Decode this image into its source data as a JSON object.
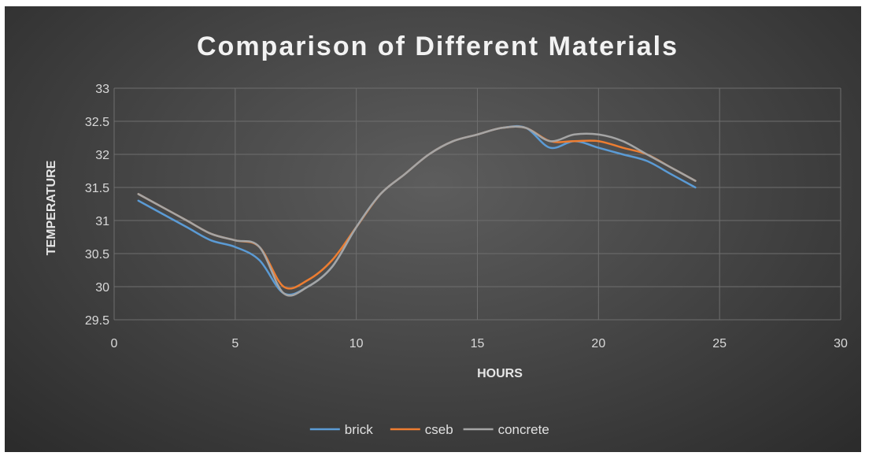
{
  "chart_data": {
    "type": "line",
    "title": "Comparison of Different Materials",
    "xlabel": "HOURS",
    "ylabel": "TEMPERATURE",
    "xlim": [
      0,
      30
    ],
    "ylim": [
      29.5,
      33
    ],
    "x_ticks": [
      0,
      5,
      10,
      15,
      20,
      25,
      30
    ],
    "y_ticks": [
      29.5,
      30,
      30.5,
      31,
      31.5,
      32,
      32.5,
      33
    ],
    "x_tick_labels": [
      "0",
      "5",
      "10",
      "15",
      "20",
      "25",
      "30"
    ],
    "y_tick_labels": [
      "29.5",
      "30",
      "30.5",
      "31",
      "31.5",
      "32",
      "32.5",
      "33"
    ],
    "grid": true,
    "legend_position": "bottom",
    "x": [
      1,
      2,
      3,
      4,
      5,
      6,
      7,
      8,
      9,
      10,
      11,
      12,
      13,
      14,
      15,
      16,
      17,
      18,
      19,
      20,
      21,
      22,
      23,
      24
    ],
    "series": [
      {
        "name": "brick",
        "color": "#5b9bd5",
        "values": [
          31.3,
          31.1,
          30.9,
          30.7,
          30.6,
          30.4,
          29.9,
          30.0,
          30.3,
          30.9,
          31.4,
          31.7,
          32.0,
          32.2,
          32.3,
          32.4,
          32.4,
          32.1,
          32.2,
          32.1,
          32.0,
          31.9,
          31.7,
          31.5
        ]
      },
      {
        "name": "cseb",
        "color": "#ed7d31",
        "values": [
          31.4,
          31.2,
          31.0,
          30.8,
          30.7,
          30.6,
          30.0,
          30.1,
          30.4,
          30.9,
          31.4,
          31.7,
          32.0,
          32.2,
          32.3,
          32.4,
          32.4,
          32.2,
          32.2,
          32.2,
          32.1,
          32.0,
          31.8,
          31.6
        ]
      },
      {
        "name": "concrete",
        "color": "#a5a5a5",
        "values": [
          31.4,
          31.2,
          31.0,
          30.8,
          30.7,
          30.6,
          29.9,
          30.0,
          30.3,
          30.9,
          31.4,
          31.7,
          32.0,
          32.2,
          32.3,
          32.4,
          32.4,
          32.2,
          32.3,
          32.3,
          32.2,
          32.0,
          31.8,
          31.6
        ]
      }
    ]
  }
}
